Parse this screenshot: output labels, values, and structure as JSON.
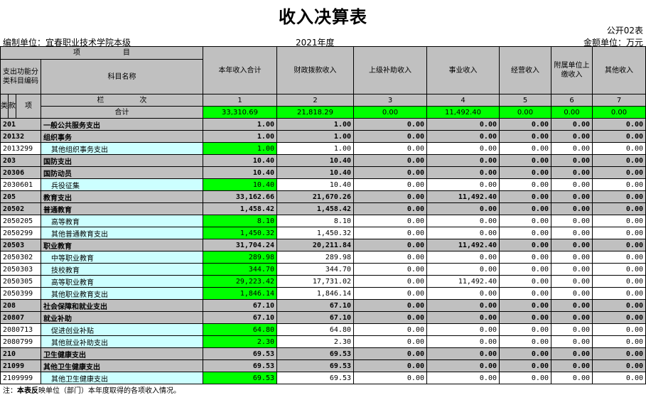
{
  "title": "收入决算表",
  "form_no": "公开02表",
  "org": "编制单位：宜春职业技术学院本级",
  "year": "2021年度",
  "amount_unit": "金额单位：万元",
  "header": {
    "item": "项　　　　　　目",
    "code": "支出功能分类科目编码",
    "name": "科目名称",
    "cols": [
      "本年收入合计",
      "财政拨款收入",
      "上级补助收入",
      "事业收入",
      "经营收入",
      "附属单位上缴收入",
      "其他收入"
    ],
    "lei": "类",
    "kuan": "款",
    "xiang": "项",
    "lanci": "栏　　　　　次",
    "col_nums": [
      "1",
      "2",
      "3",
      "4",
      "5",
      "6",
      "7"
    ],
    "total_label": "合计",
    "total": [
      "33,310.69",
      "21,818.29",
      "0.00",
      "11,492.40",
      "0.00",
      "0.00",
      "0.00"
    ]
  },
  "rows": [
    {
      "code": "201",
      "name": "一般公共服务支出",
      "level": "sum",
      "v": [
        "1.00",
        "1.00",
        "0.00",
        "0.00",
        "0.00",
        "0.00",
        "0.00"
      ]
    },
    {
      "code": "20132",
      "name": "组织事务",
      "level": "sum",
      "v": [
        "1.00",
        "1.00",
        "0.00",
        "0.00",
        "0.00",
        "0.00",
        "0.00"
      ]
    },
    {
      "code": "2013299",
      "name": "其他组织事务支出",
      "level": "detail",
      "v": [
        "1.00",
        "1.00",
        "0.00",
        "0.00",
        "0.00",
        "0.00",
        "0.00"
      ]
    },
    {
      "code": "203",
      "name": "国防支出",
      "level": "sum",
      "v": [
        "10.40",
        "10.40",
        "0.00",
        "0.00",
        "0.00",
        "0.00",
        "0.00"
      ]
    },
    {
      "code": "20306",
      "name": "国防动员",
      "level": "sum",
      "v": [
        "10.40",
        "10.40",
        "0.00",
        "0.00",
        "0.00",
        "0.00",
        "0.00"
      ]
    },
    {
      "code": "2030601",
      "name": "兵役征集",
      "level": "detail",
      "v": [
        "10.40",
        "10.40",
        "0.00",
        "0.00",
        "0.00",
        "0.00",
        "0.00"
      ]
    },
    {
      "code": "205",
      "name": "教育支出",
      "level": "sum",
      "v": [
        "33,162.66",
        "21,670.26",
        "0.00",
        "11,492.40",
        "0.00",
        "0.00",
        "0.00"
      ]
    },
    {
      "code": "20502",
      "name": "普通教育",
      "level": "sum",
      "v": [
        "1,458.42",
        "1,458.42",
        "0.00",
        "0.00",
        "0.00",
        "0.00",
        "0.00"
      ]
    },
    {
      "code": "2050205",
      "name": "高等教育",
      "level": "detail",
      "v": [
        "8.10",
        "8.10",
        "0.00",
        "0.00",
        "0.00",
        "0.00",
        "0.00"
      ]
    },
    {
      "code": "2050299",
      "name": "其他普通教育支出",
      "level": "detail",
      "v": [
        "1,450.32",
        "1,450.32",
        "0.00",
        "0.00",
        "0.00",
        "0.00",
        "0.00"
      ]
    },
    {
      "code": "20503",
      "name": "职业教育",
      "level": "sum",
      "v": [
        "31,704.24",
        "20,211.84",
        "0.00",
        "11,492.40",
        "0.00",
        "0.00",
        "0.00"
      ]
    },
    {
      "code": "2050302",
      "name": "中等职业教育",
      "level": "detail",
      "v": [
        "289.98",
        "289.98",
        "0.00",
        "0.00",
        "0.00",
        "0.00",
        "0.00"
      ]
    },
    {
      "code": "2050303",
      "name": "技校教育",
      "level": "detail",
      "v": [
        "344.70",
        "344.70",
        "0.00",
        "0.00",
        "0.00",
        "0.00",
        "0.00"
      ]
    },
    {
      "code": "2050305",
      "name": "高等职业教育",
      "level": "detail",
      "v": [
        "29,223.42",
        "17,731.02",
        "0.00",
        "11,492.40",
        "0.00",
        "0.00",
        "0.00"
      ]
    },
    {
      "code": "2050399",
      "name": "其他职业教育支出",
      "level": "detail",
      "v": [
        "1,846.14",
        "1,846.14",
        "0.00",
        "0.00",
        "0.00",
        "0.00",
        "0.00"
      ]
    },
    {
      "code": "208",
      "name": "社会保障和就业支出",
      "level": "sum",
      "v": [
        "67.10",
        "67.10",
        "0.00",
        "0.00",
        "0.00",
        "0.00",
        "0.00"
      ]
    },
    {
      "code": "20807",
      "name": "就业补助",
      "level": "sum",
      "v": [
        "67.10",
        "67.10",
        "0.00",
        "0.00",
        "0.00",
        "0.00",
        "0.00"
      ]
    },
    {
      "code": "2080713",
      "name": "促进创业补贴",
      "level": "detail",
      "v": [
        "64.80",
        "64.80",
        "0.00",
        "0.00",
        "0.00",
        "0.00",
        "0.00"
      ]
    },
    {
      "code": "2080799",
      "name": "其他就业补助支出",
      "level": "detail",
      "v": [
        "2.30",
        "2.30",
        "0.00",
        "0.00",
        "0.00",
        "0.00",
        "0.00"
      ]
    },
    {
      "code": "210",
      "name": "卫生健康支出",
      "level": "sum",
      "v": [
        "69.53",
        "69.53",
        "0.00",
        "0.00",
        "0.00",
        "0.00",
        "0.00"
      ]
    },
    {
      "code": "21099",
      "name": "其他卫生健康支出",
      "level": "sum",
      "v": [
        "69.53",
        "69.53",
        "0.00",
        "0.00",
        "0.00",
        "0.00",
        "0.00"
      ]
    },
    {
      "code": "2109999",
      "name": "其他卫生健康支出",
      "level": "detail",
      "v": [
        "69.53",
        "69.53",
        "0.00",
        "0.00",
        "0.00",
        "0.00",
        "0.00"
      ]
    }
  ],
  "footnote_prefix": "注：",
  "footnote_bold": "本表反",
  "footnote_rest": "映单位（部门）本年度取得的各项收入情况。",
  "colors": {
    "header_gray": "#c0c0c0",
    "highlight_green": "#00ff00",
    "detail_cyan": "#ccffff"
  }
}
